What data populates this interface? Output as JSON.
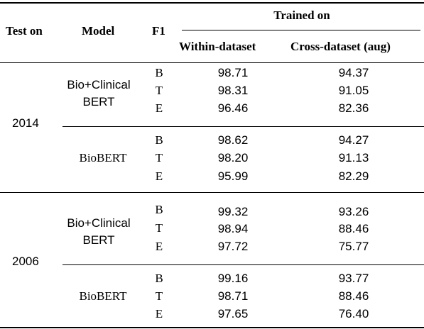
{
  "header": {
    "test_on": "Test on",
    "model": "Model",
    "f1": "F1",
    "trained_on": "Trained on",
    "within": "Within-dataset",
    "cross": "Cross-dataset (aug)"
  },
  "blocks": [
    {
      "test_on": "2014",
      "models": [
        {
          "name_lines": [
            "Bio+Clinical",
            "BERT"
          ],
          "rows": [
            {
              "f1": "B",
              "within": "98.71",
              "cross": "94.37"
            },
            {
              "f1": "T",
              "within": "98.31",
              "cross": "91.05"
            },
            {
              "f1": "E",
              "within": "96.46",
              "cross": "82.36"
            }
          ]
        },
        {
          "name_lines": [
            "BioBERT"
          ],
          "rows": [
            {
              "f1": "B",
              "within": "98.62",
              "cross": "94.27"
            },
            {
              "f1": "T",
              "within": "98.20",
              "cross": "91.13"
            },
            {
              "f1": "E",
              "within": "95.99",
              "cross": "82.29"
            }
          ]
        }
      ]
    },
    {
      "test_on": "2006",
      "models": [
        {
          "name_lines": [
            "Bio+Clinical",
            "BERT"
          ],
          "rows": [
            {
              "f1": "B",
              "within": "99.32",
              "cross": "93.26"
            },
            {
              "f1": "T",
              "within": "98.94",
              "cross": "88.46"
            },
            {
              "f1": "E",
              "within": "97.72",
              "cross": "75.77"
            }
          ]
        },
        {
          "name_lines": [
            "BioBERT"
          ],
          "rows": [
            {
              "f1": "B",
              "within": "99.16",
              "cross": "93.77"
            },
            {
              "f1": "T",
              "within": "98.71",
              "cross": "88.46"
            },
            {
              "f1": "E",
              "within": "97.65",
              "cross": "76.40"
            }
          ]
        }
      ]
    }
  ]
}
